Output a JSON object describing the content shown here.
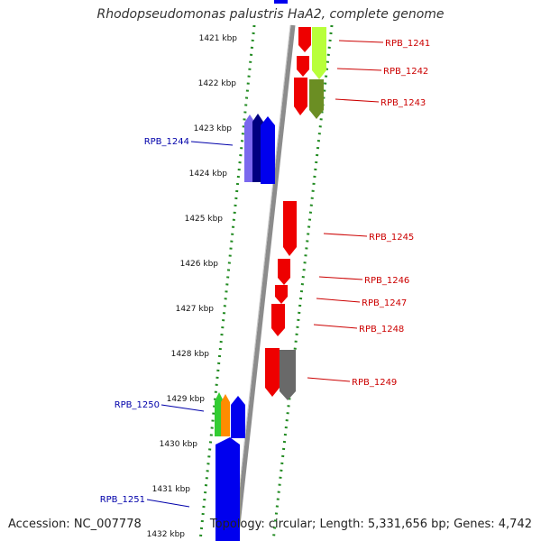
{
  "title": "Rhodopseudomonas palustris HaA2, complete genome",
  "accession": "Accession: NC_007778",
  "summary": "Topology: circular; Length: 5,331,656 bp; Genes: 4,742",
  "colors": {
    "scale_dots": "#228b22",
    "backbone": "#8c8c8c",
    "forward_label": "#cc0000",
    "reverse_label": "#0000aa"
  },
  "scale_ticks": [
    {
      "label": "1421 kbp"
    },
    {
      "label": "1422 kbp"
    },
    {
      "label": "1423 kbp"
    },
    {
      "label": "1424 kbp"
    },
    {
      "label": "1425 kbp"
    },
    {
      "label": "1426 kbp"
    },
    {
      "label": "1427 kbp"
    },
    {
      "label": "1428 kbp"
    },
    {
      "label": "1429 kbp"
    },
    {
      "label": "1430 kbp"
    },
    {
      "label": "1431 kbp"
    },
    {
      "label": "1432 kbp"
    }
  ],
  "gene_labels": [
    {
      "text": "RPB_1241",
      "strand": "forward"
    },
    {
      "text": "RPB_1242",
      "strand": "forward"
    },
    {
      "text": "RPB_1243",
      "strand": "forward"
    },
    {
      "text": "RPB_1244",
      "strand": "reverse"
    },
    {
      "text": "RPB_1245",
      "strand": "forward"
    },
    {
      "text": "RPB_1246",
      "strand": "forward"
    },
    {
      "text": "RPB_1247",
      "strand": "forward"
    },
    {
      "text": "RPB_1248",
      "strand": "forward"
    },
    {
      "text": "RPB_1249",
      "strand": "forward"
    },
    {
      "text": "RPB_1250",
      "strand": "reverse"
    },
    {
      "text": "RPB_1251",
      "strand": "reverse"
    }
  ]
}
